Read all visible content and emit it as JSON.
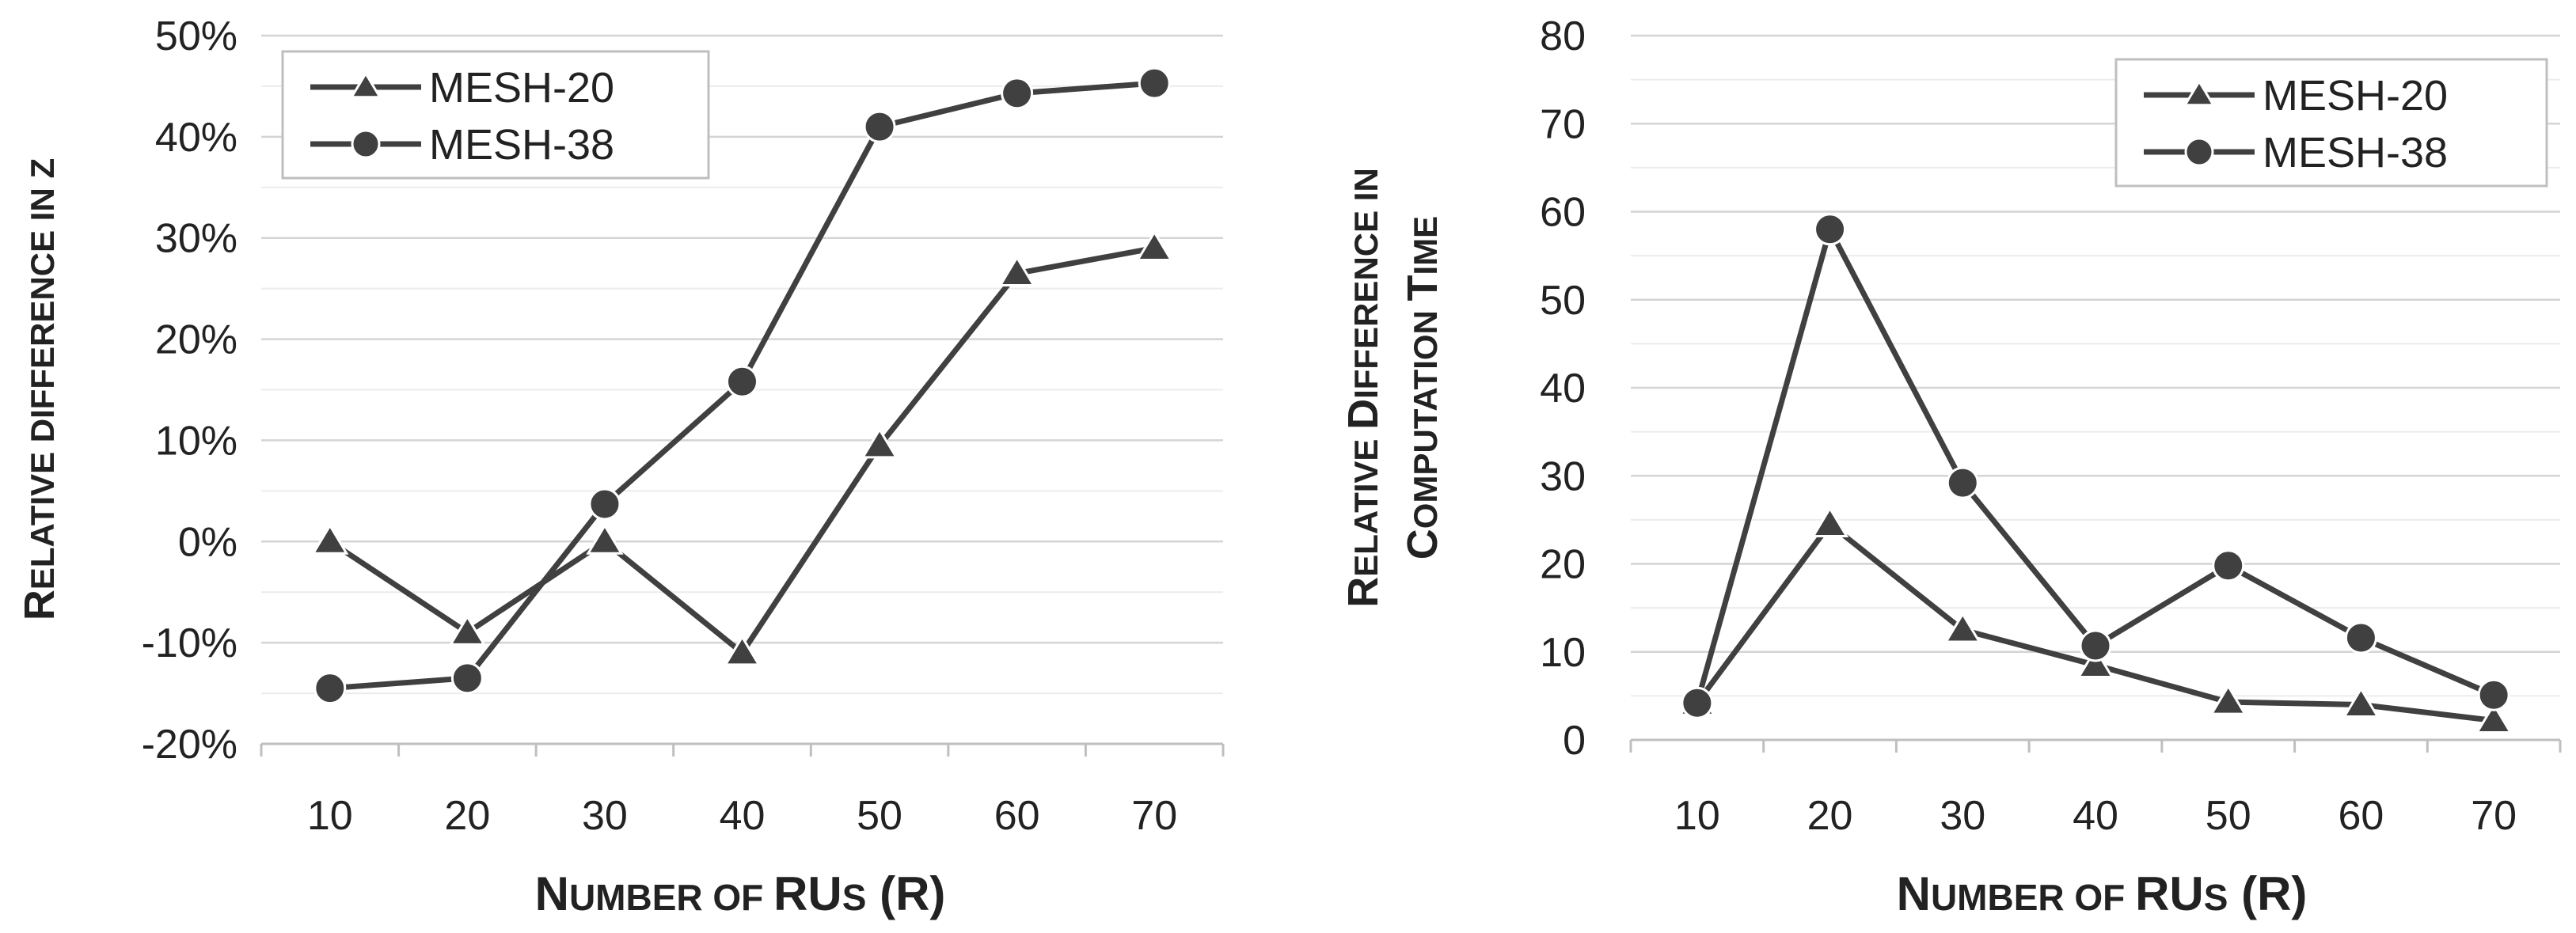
{
  "chart_data": [
    {
      "type": "line",
      "id": "left",
      "title": "",
      "categories": [
        "10",
        "20",
        "30",
        "40",
        "50",
        "60",
        "70"
      ],
      "xlabel": {
        "cap1": "N",
        "rest1": "UMBER OF ",
        "cap2": "RU",
        "rest2": "S",
        "tail": " (R)"
      },
      "ylabel": {
        "cap1": "R",
        "rest1": "ELATIVE DIFFERENCE IN Z"
      },
      "ylim": [
        -20,
        50
      ],
      "ytick_step": 10,
      "ytick_labels": [
        "-20%",
        "-10%",
        "0%",
        "10%",
        "20%",
        "30%",
        "40%",
        "50%"
      ],
      "legend_position": "top-left",
      "series": [
        {
          "name": "MESH-20",
          "marker": "triangle",
          "values": [
            0,
            -9,
            0,
            -11,
            9.5,
            26.5,
            29
          ]
        },
        {
          "name": "MESH-38",
          "marker": "circle",
          "values": [
            -14.5,
            -13.5,
            3.7,
            15.8,
            41,
            44.3,
            45.3
          ]
        }
      ]
    },
    {
      "type": "line",
      "id": "right",
      "title": "",
      "categories": [
        "10",
        "20",
        "30",
        "40",
        "50",
        "60",
        "70"
      ],
      "xlabel": {
        "cap1": "N",
        "rest1": "UMBER OF ",
        "cap2": "RU",
        "rest2": "S",
        "tail": " (R)"
      },
      "ylabel": {
        "cap1": "R",
        "rest1": "ELATIVE ",
        "cap2": "D",
        "rest2": "IFFERENCE IN",
        "line2cap1": "C",
        "line2rest1": "OMPUTATION ",
        "line2cap2": "T",
        "line2rest2": "IME"
      },
      "ylim": [
        0,
        80
      ],
      "ytick_step": 10,
      "ytick_labels": [
        "0",
        "10",
        "20",
        "30",
        "40",
        "50",
        "60",
        "70",
        "80"
      ],
      "legend_position": "top-right",
      "series": [
        {
          "name": "MESH-20",
          "marker": "triangle",
          "values": [
            4.2,
            24.5,
            12.5,
            8.5,
            4.3,
            4,
            2.2
          ]
        },
        {
          "name": "MESH-38",
          "marker": "circle",
          "values": [
            4.2,
            58,
            29.2,
            10.7,
            19.8,
            11.6,
            5.1
          ]
        }
      ]
    }
  ]
}
